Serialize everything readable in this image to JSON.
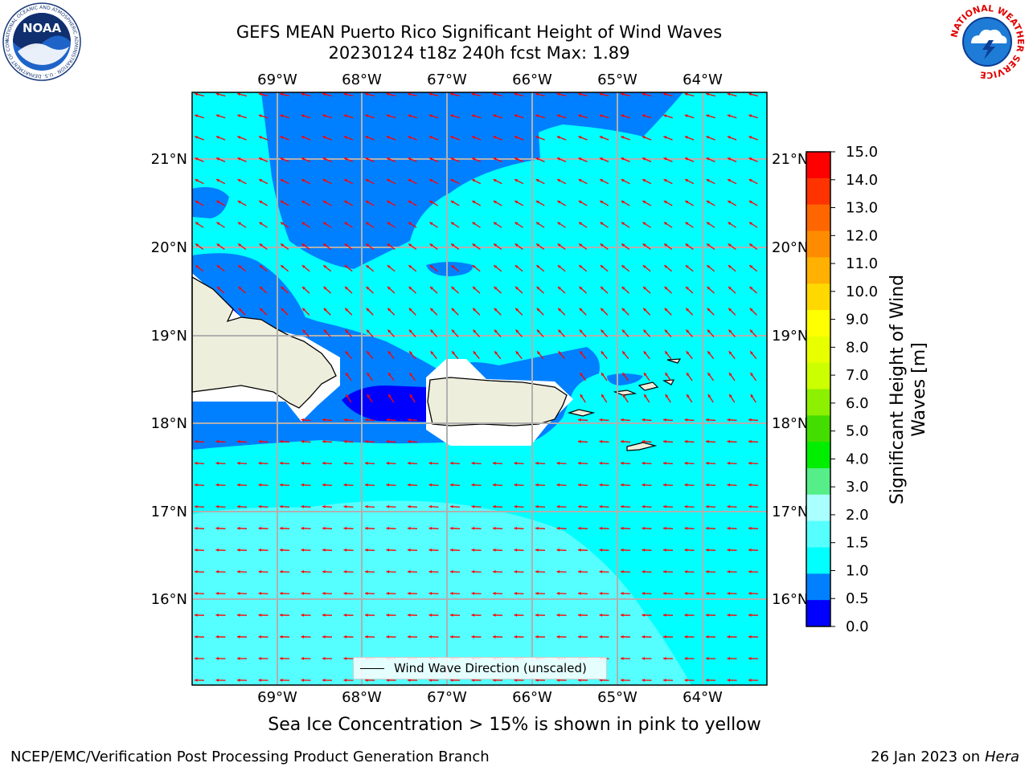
{
  "header": {
    "title_line1": "GEFS MEAN Puerto Rico Significant Height of Wind Waves",
    "title_line2": "20230124 t18z 240h fcst   Max: 1.89"
  },
  "axes": {
    "lon_labels": [
      "69°W",
      "68°W",
      "67°W",
      "66°W",
      "65°W",
      "64°W"
    ],
    "lat_labels": [
      "21°N",
      "20°N",
      "19°N",
      "18°N",
      "17°N",
      "16°N"
    ]
  },
  "legend": {
    "label": "Wind Wave Direction (unscaled)",
    "arrow_color": "#ff0000"
  },
  "colorbar": {
    "label_line1": "Significant Height of Wind",
    "label_line2": "Waves [m]",
    "ticks": [
      "15.0",
      "14.0",
      "13.0",
      "12.0",
      "11.0",
      "10.0",
      "9.0",
      "8.0",
      "7.0",
      "6.0",
      "5.0",
      "4.0",
      "3.0",
      "2.0",
      "1.5",
      "1.0",
      "0.5",
      "0.0"
    ],
    "colors": [
      "#ff0000",
      "#ff3300",
      "#ff6600",
      "#ff8c00",
      "#ffb000",
      "#ffd800",
      "#ffff00",
      "#e8ff00",
      "#ccff00",
      "#8cf000",
      "#44dd00",
      "#00ee00",
      "#55ee88",
      "#aaffff",
      "#55ffff",
      "#00ffff",
      "#0080ff",
      "#0000ff"
    ]
  },
  "map_colors": {
    "sea_base": "#00ffff",
    "sea_1_0_1_5": "#00ffff",
    "sea_0_5_1_0": "#0080ff",
    "sea_0_0_0_5": "#0000ff",
    "sea_1_5_2_0": "#55ffff",
    "land": "#eeeedd",
    "grid": "#b0b0b0"
  },
  "footer": {
    "sea_ice_note": "Sea Ice Concentration > 15% is shown in pink to yellow",
    "credit": "NCEP/EMC/Verification Post Processing Product Generation Branch",
    "date_prefix": "26 Jan 2023 on ",
    "date_host": "Hera"
  },
  "logos": {
    "noaa_text": "NOAA",
    "noaa_ring": "NATIONAL OCEANIC AND ATMOSPHERIC ADMINISTRATION · U.S. DEPARTMENT OF COMMERCE",
    "nws_ring": "NATIONAL WEATHER SERVICE"
  }
}
